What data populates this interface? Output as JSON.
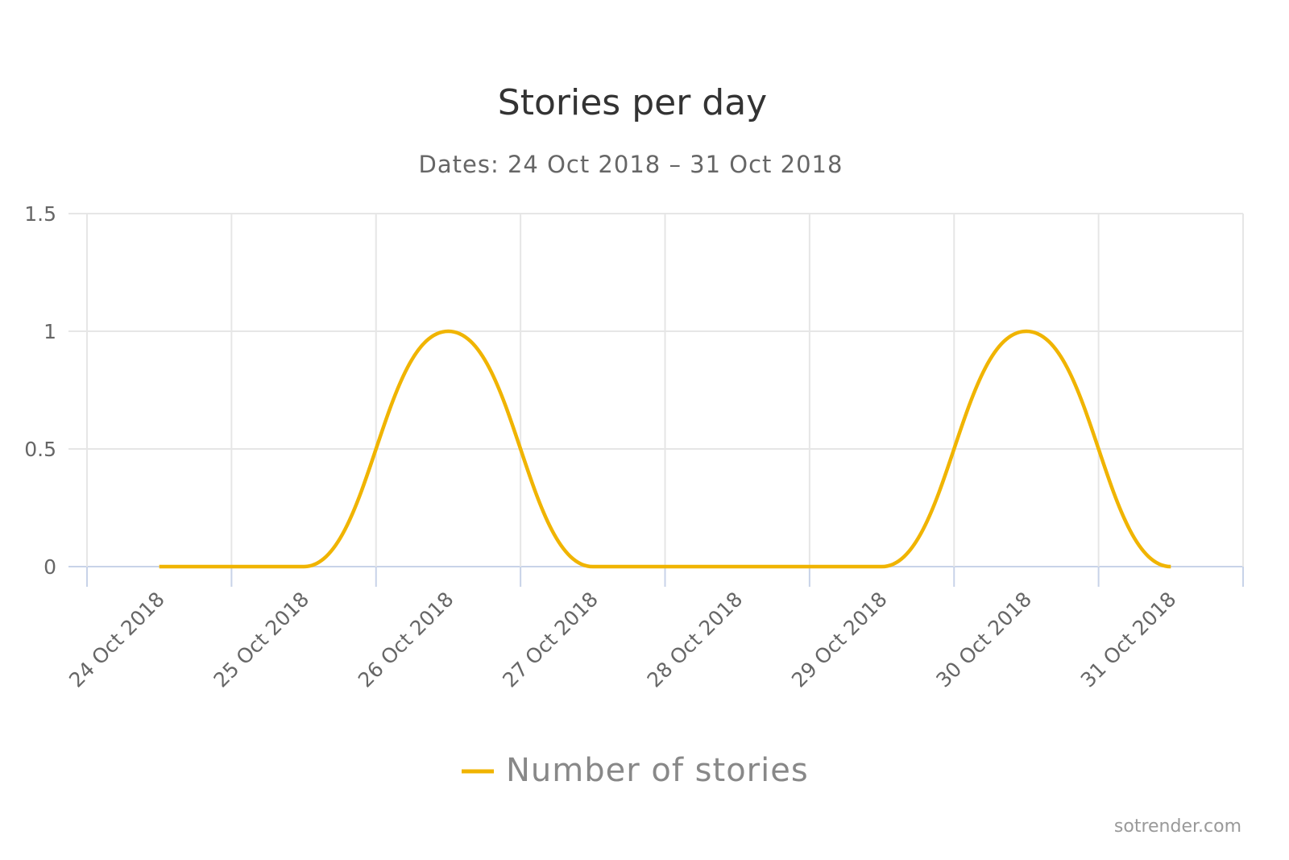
{
  "chart_data": {
    "type": "line",
    "title": "Stories per day",
    "subtitle": "Dates: 24 Oct 2018 – 31 Oct 2018",
    "xlabel": "",
    "ylabel": "",
    "categories": [
      "24 Oct 2018",
      "25 Oct 2018",
      "26 Oct 2018",
      "27 Oct 2018",
      "28 Oct 2018",
      "29 Oct 2018",
      "30 Oct 2018",
      "31 Oct 2018"
    ],
    "series": [
      {
        "name": "Number of stories",
        "values": [
          0,
          0,
          1,
          0,
          0,
          0,
          1,
          0
        ],
        "color": "#f0b400"
      }
    ],
    "ylim": [
      0,
      1.5
    ],
    "yticks": [
      "0",
      "0.5",
      "1",
      "1.5"
    ],
    "ytick_values": [
      0,
      0.5,
      1,
      1.5
    ],
    "grid": true,
    "legend_position": "bottom-center",
    "smooth": true
  },
  "credit": "sotrender.com"
}
